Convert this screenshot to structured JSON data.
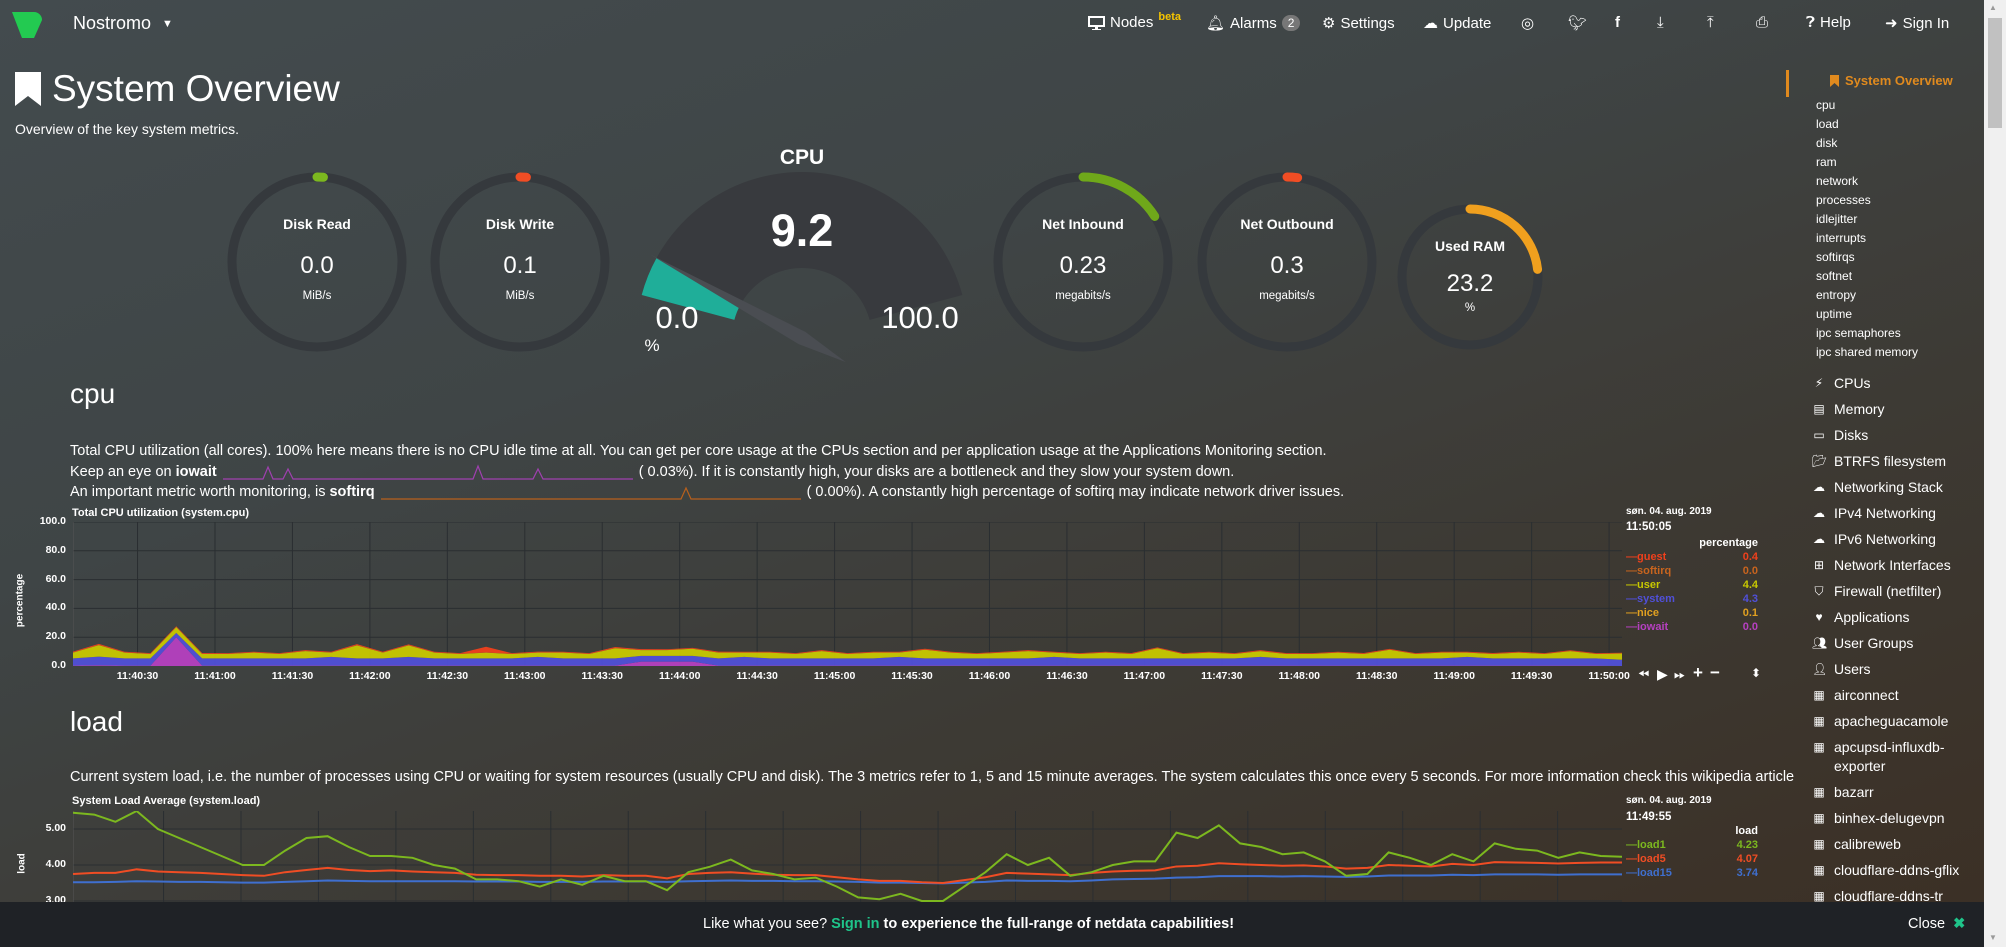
{
  "header": {
    "brand": "Nostromo",
    "nodes": "Nodes",
    "beta": "beta",
    "alarms": "Alarms",
    "alarm_count": "2",
    "settings": "Settings",
    "update": "Update",
    "help": "Help",
    "signin": "Sign In"
  },
  "page": {
    "title": "System Overview",
    "subtitle": "Overview of the key system metrics."
  },
  "gauges": [
    {
      "title": "Disk Read",
      "value": "0.0",
      "units": "MiB/s",
      "fraction": 0,
      "color": "#7cb81f"
    },
    {
      "title": "Disk Write",
      "value": "0.1",
      "units": "MiB/s",
      "fraction": 0,
      "color": "#f04d24"
    },
    {
      "title": "Net Inbound",
      "value": "0.23",
      "units": "megabits/s",
      "fraction": 0.16,
      "color": "#6fa81a"
    },
    {
      "title": "Net Outbound",
      "value": "0.3",
      "units": "megabits/s",
      "fraction": 0.02,
      "color": "#f04d24"
    },
    {
      "title": "Used RAM",
      "value": "23.2",
      "units": "%",
      "fraction": 0.232,
      "color": "#f0a01e"
    }
  ],
  "cpu_gauge": {
    "title": "CPU",
    "value": "9.2",
    "min": "0.0",
    "max": "100.0",
    "units": "%",
    "fraction": 0.092,
    "color": "#1fae99"
  },
  "cpu_section": {
    "heading": "cpu",
    "line1": "Total CPU utilization (all cores). 100% here means there is no CPU idle time at all. You can get per core usage at the CPUs section and per application usage at the Applications Monitoring section.",
    "line2a": "Keep an eye on",
    "line2b": "iowait",
    "line2c": "(      0.03%). If it is constantly high, your disks are a bottleneck and they slow your system down.",
    "line3a": "An important metric worth monitoring, is",
    "line3b": "softirq",
    "line3c": "(      0.00%). A constantly high percentage of softirq may indicate network driver issues."
  },
  "load_section": {
    "heading": "load",
    "line1": "Current system load, i.e. the number of processes using CPU or waiting for system resources (usually CPU and disk). The 3 metrics refer to 1, 5 and 15 minute averages. The system calculates this once every 5 seconds. For more information check this wikipedia article"
  },
  "chart_data": [
    {
      "type": "area",
      "title": "Total CPU utilization (system.cpu)",
      "ylabel": "percentage",
      "units": "percentage",
      "stacked": true,
      "ylim": [
        0,
        100
      ],
      "yticks": [
        "100.0",
        "80.0",
        "60.0",
        "40.0",
        "20.0",
        "0.0"
      ],
      "xrange": [
        "11:40:05",
        "11:50:05"
      ],
      "xticks": [
        "11:40:30",
        "11:41:00",
        "11:41:30",
        "11:42:00",
        "11:42:30",
        "11:43:00",
        "11:43:30",
        "11:44:00",
        "11:44:30",
        "11:45:00",
        "11:45:30",
        "11:46:00",
        "11:46:30",
        "11:47:00",
        "11:47:30",
        "11:48:00",
        "11:48:30",
        "11:49:00",
        "11:49:30",
        "11:50:00"
      ],
      "legend_date": "søn. 04. aug. 2019",
      "legend_time": "11:50:05",
      "series": [
        {
          "name": "iowait",
          "color": "#b540c0",
          "value": "0.0",
          "values": [
            0.3,
            0.5,
            0.3,
            0.3,
            20,
            0.3,
            0.3,
            0.3,
            0.3,
            0.3,
            0.3,
            0.3,
            0.3,
            0.3,
            0.3,
            0.3,
            0.3,
            0.3,
            0.3,
            0.3,
            0.3,
            0.3,
            3,
            3,
            3,
            0.3,
            0.3,
            0.3,
            0.3,
            0.3,
            0.3,
            0.3,
            0.3,
            0.3,
            0.3,
            0.3,
            0.3,
            0.3,
            0.3,
            0.3,
            0.3,
            0.3,
            0.3,
            0.3,
            0.3,
            0.3,
            0.3,
            0.3,
            0.3,
            0.3,
            0.3,
            0.3,
            0.3,
            0.3,
            0.3,
            0.3,
            0.3,
            0.3,
            0.3,
            0.3,
            0
          ]
        },
        {
          "name": "system",
          "color": "#5050d8",
          "value": "4.3",
          "values": [
            5,
            6,
            5,
            5,
            3,
            5,
            5,
            5,
            5,
            5,
            6,
            5,
            5,
            6,
            5,
            5,
            5,
            5,
            6,
            5,
            5,
            5,
            4,
            4,
            4,
            5,
            6,
            5,
            5,
            5,
            5,
            5,
            6,
            5,
            5,
            5,
            5,
            5,
            6,
            5,
            5,
            5,
            5,
            5,
            5,
            5,
            6,
            5,
            5,
            5,
            5,
            5,
            5,
            5,
            6,
            5,
            5,
            5,
            5,
            5,
            4.3
          ]
        },
        {
          "name": "user",
          "color": "#c8c800",
          "value": "4.4",
          "values": [
            4,
            8,
            4,
            3,
            4,
            3,
            3,
            4,
            3,
            5,
            3,
            9,
            4,
            8,
            4,
            3,
            4,
            3,
            3,
            4,
            3,
            7,
            4,
            4,
            5,
            4,
            3,
            4,
            3,
            5,
            3,
            4,
            3,
            6,
            4,
            3,
            4,
            5,
            3,
            3,
            4,
            3,
            7,
            3,
            4,
            3,
            4,
            3,
            3,
            4,
            3,
            6,
            3,
            4,
            3,
            3,
            4,
            3,
            5,
            3,
            4.4
          ]
        },
        {
          "name": "nice",
          "color": "#e0a020",
          "value": "0.1",
          "values": [
            0.1,
            0.1,
            0.1,
            0.1,
            0.1,
            0.1,
            0.1,
            0.1,
            0.1,
            0.1,
            0.1,
            0.1,
            0.1,
            0.1,
            0.1,
            0.1,
            0.1,
            0.1,
            0.1,
            0.1,
            0.1,
            0.1,
            0.1,
            0.1,
            0.1,
            0.1,
            0.1,
            0.1,
            0.1,
            0.1,
            0.1,
            0.1,
            0.1,
            0.1,
            0.1,
            0.1,
            0.1,
            0.1,
            0.1,
            0.1,
            0.1,
            0.1,
            0.1,
            0.1,
            0.1,
            0.1,
            0.1,
            0.1,
            0.1,
            0.1,
            0.1,
            0.1,
            0.1,
            0.1,
            0.1,
            0.1,
            0.1,
            0.1,
            0.1,
            0.1,
            0.1
          ]
        },
        {
          "name": "softirq",
          "color": "#c8641e",
          "value": "0.0",
          "values": [
            0,
            0,
            0,
            0,
            0,
            0,
            0,
            0,
            0,
            0,
            0,
            0,
            0,
            0,
            0,
            0,
            0,
            0,
            0,
            0,
            0,
            0,
            0,
            0,
            0,
            0,
            0,
            0,
            0,
            0,
            0,
            0,
            0,
            0,
            0,
            0,
            0,
            0,
            0,
            0,
            0,
            0,
            0,
            0,
            0,
            0,
            0,
            0,
            0,
            0,
            0,
            0,
            0,
            0,
            0,
            0,
            0,
            0,
            0,
            0,
            0
          ]
        },
        {
          "name": "guest",
          "color": "#f0401c",
          "value": "0.4",
          "values": [
            0.6,
            0.8,
            0.5,
            0.5,
            0.5,
            0.6,
            0.5,
            0.5,
            0.5,
            0.6,
            0.5,
            0.8,
            0.5,
            0.6,
            0.5,
            0.5,
            4,
            0.5,
            0.6,
            0.5,
            0.5,
            0.8,
            0.6,
            0.5,
            0.5,
            0.6,
            0.5,
            0.5,
            0.5,
            0.6,
            0.5,
            0.5,
            0.5,
            0.6,
            0.5,
            0.5,
            0.5,
            0.6,
            0.5,
            0.5,
            0.5,
            0.6,
            0.5,
            0.5,
            0.5,
            0.5,
            0.6,
            0.5,
            0.5,
            0.5,
            0.6,
            0.5,
            0.5,
            0.5,
            0.5,
            0.6,
            0.5,
            0.5,
            0.5,
            0.5,
            0.4
          ]
        }
      ]
    },
    {
      "type": "line",
      "title": "System Load Average (system.load)",
      "ylabel": "load",
      "units": "load",
      "yticks": [
        "5.00",
        "4.00",
        "3.00"
      ],
      "ylim_visible": [
        2.98,
        5.5
      ],
      "xrange": [
        "11:39:55",
        "11:49:55"
      ],
      "legend_date": "søn. 04. aug. 2019",
      "legend_time": "11:49:55",
      "series": [
        {
          "name": "load1",
          "color": "#7cb81f",
          "value": "4.23",
          "values": [
            5.45,
            5.4,
            5.2,
            5.5,
            5.0,
            4.75,
            4.5,
            4.25,
            4.0,
            4.0,
            4.4,
            4.75,
            4.8,
            4.5,
            4.25,
            4.25,
            4.2,
            4.0,
            3.9,
            3.6,
            3.6,
            3.55,
            3.4,
            3.6,
            3.45,
            3.7,
            3.55,
            3.55,
            3.3,
            3.8,
            3.95,
            4.15,
            3.85,
            3.75,
            3.6,
            3.65,
            3.4,
            3.1,
            3.05,
            3.2,
            3.0,
            3.0,
            3.4,
            3.8,
            4.3,
            4.0,
            4.2,
            3.7,
            3.8,
            4.0,
            4.1,
            4.1,
            4.9,
            4.75,
            5.1,
            4.6,
            4.5,
            4.3,
            4.35,
            4.1,
            3.7,
            3.75,
            4.35,
            4.2,
            4.0,
            4.3,
            4.1,
            4.6,
            4.45,
            4.4,
            4.2,
            4.35,
            4.25,
            4.23
          ]
        },
        {
          "name": "load5",
          "color": "#f04d24",
          "value": "4.07",
          "values": [
            3.75,
            3.78,
            3.78,
            3.88,
            3.82,
            3.8,
            3.78,
            3.75,
            3.72,
            3.7,
            3.8,
            3.86,
            3.92,
            3.86,
            3.83,
            3.85,
            3.82,
            3.8,
            3.78,
            3.73,
            3.72,
            3.72,
            3.7,
            3.7,
            3.68,
            3.72,
            3.7,
            3.7,
            3.63,
            3.75,
            3.78,
            3.8,
            3.76,
            3.73,
            3.72,
            3.72,
            3.66,
            3.6,
            3.56,
            3.56,
            3.52,
            3.5,
            3.58,
            3.66,
            3.78,
            3.76,
            3.74,
            3.72,
            3.78,
            3.82,
            3.84,
            3.85,
            3.96,
            3.98,
            4.05,
            4.02,
            4.0,
            3.98,
            3.99,
            3.96,
            3.9,
            3.92,
            4.0,
            3.98,
            3.96,
            4.03,
            4.0,
            4.08,
            4.07,
            4.06,
            4.04,
            4.06,
            4.07,
            4.07
          ]
        },
        {
          "name": "load15",
          "color": "#3f6fcf",
          "value": "3.74",
          "values": [
            3.52,
            3.52,
            3.53,
            3.55,
            3.54,
            3.53,
            3.53,
            3.52,
            3.51,
            3.51,
            3.53,
            3.55,
            3.57,
            3.56,
            3.55,
            3.55,
            3.55,
            3.55,
            3.55,
            3.54,
            3.54,
            3.54,
            3.53,
            3.53,
            3.53,
            3.54,
            3.54,
            3.54,
            3.53,
            3.55,
            3.56,
            3.57,
            3.56,
            3.56,
            3.55,
            3.55,
            3.54,
            3.53,
            3.51,
            3.51,
            3.5,
            3.49,
            3.51,
            3.53,
            3.57,
            3.56,
            3.56,
            3.55,
            3.57,
            3.6,
            3.61,
            3.62,
            3.65,
            3.66,
            3.69,
            3.69,
            3.69,
            3.68,
            3.69,
            3.68,
            3.67,
            3.68,
            3.71,
            3.71,
            3.71,
            3.73,
            3.72,
            3.74,
            3.74,
            3.74,
            3.73,
            3.74,
            3.74,
            3.74
          ]
        }
      ]
    }
  ],
  "sidebar": {
    "active": "System Overview",
    "sub": [
      "cpu",
      "load",
      "disk",
      "ram",
      "network",
      "processes",
      "idlejitter",
      "interrupts",
      "softirqs",
      "softnet",
      "entropy",
      "uptime",
      "ipc semaphores",
      "ipc shared memory"
    ],
    "items": [
      {
        "label": "CPUs",
        "icon": "bolt-icon"
      },
      {
        "label": "Memory",
        "icon": "memory-chip-icon"
      },
      {
        "label": "Disks",
        "icon": "hdd-icon"
      },
      {
        "label": "BTRFS filesystem",
        "icon": "folder-open-icon"
      },
      {
        "label": "Networking Stack",
        "icon": "cloud-icon"
      },
      {
        "label": "IPv4 Networking",
        "icon": "cloud-icon"
      },
      {
        "label": "IPv6 Networking",
        "icon": "cloud-icon"
      },
      {
        "label": "Network Interfaces",
        "icon": "sitemap-icon"
      },
      {
        "label": "Firewall (netfilter)",
        "icon": "shield-icon"
      },
      {
        "label": "Applications",
        "icon": "heartbeat-icon"
      },
      {
        "label": "User Groups",
        "icon": "users-icon"
      },
      {
        "label": "Users",
        "icon": "user-icon"
      },
      {
        "label": "airconnect",
        "icon": "grid-icon"
      },
      {
        "label": "apacheguacamole",
        "icon": "grid-icon"
      },
      {
        "label": "apcupsd-influxdb-exporter",
        "icon": "grid-icon"
      },
      {
        "label": "bazarr",
        "icon": "grid-icon"
      },
      {
        "label": "binhex-delugevpn",
        "icon": "grid-icon"
      },
      {
        "label": "calibreweb",
        "icon": "grid-icon"
      },
      {
        "label": "cloudflare-ddns-gflix",
        "icon": "grid-icon"
      },
      {
        "label": "cloudflare-ddns-tr",
        "icon": "grid-icon"
      }
    ]
  },
  "banner": {
    "text1": "Like what you see?",
    "link": "Sign in",
    "text2": "to experience the full-range of netdata capabilities!",
    "close": "Close",
    "link_color": "#1fc48a"
  }
}
